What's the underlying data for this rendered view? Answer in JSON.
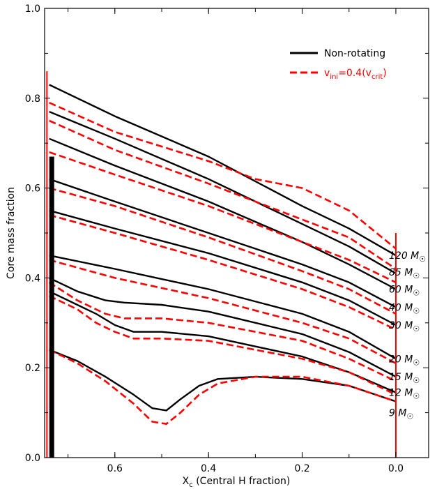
{
  "chart_data": {
    "type": "line",
    "xlabel": "X",
    "xlabel_sub": "c",
    "xlabel_rest": " (Central H fraction)",
    "ylabel": "Core mass fraction",
    "xlim": [
      0.75,
      -0.07
    ],
    "ylim": [
      0,
      1.0
    ],
    "x_ticks": [
      0.6,
      0.4,
      0.2,
      0.0
    ],
    "x_tick_labels": [
      "0.6",
      "0.4",
      "0.2",
      "0.0"
    ],
    "y_ticks": [
      0.0,
      0.2,
      0.4,
      0.6,
      0.8,
      1.0
    ],
    "y_tick_labels": [
      "0.0",
      "0.2",
      "0.4",
      "0.6",
      "0.8",
      "1.0"
    ],
    "legend": {
      "position": "top-right",
      "entries": [
        {
          "label": "Non-rotating",
          "color": "#000000",
          "style": "solid"
        },
        {
          "label_main": "v",
          "label_sub1": "ini",
          "label_mid": "=0.4(v",
          "label_sub2": "crit",
          "label_end": ")",
          "color": "#ff0000",
          "style": "dashed"
        }
      ]
    },
    "mass_labels": [
      {
        "text": "120 M",
        "sym": "☉",
        "y": 0.45
      },
      {
        "text": "85 M",
        "sym": "☉",
        "y": 0.413
      },
      {
        "text": "60 M",
        "sym": "☉",
        "y": 0.375
      },
      {
        "text": "40 M",
        "sym": "☉",
        "y": 0.335
      },
      {
        "text": "30 M",
        "sym": "☉",
        "y": 0.295
      },
      {
        "text": "20 M",
        "sym": "☉",
        "y": 0.22
      },
      {
        "text": "15 M",
        "sym": "☉",
        "y": 0.18
      },
      {
        "text": "12 M",
        "sym": "☉",
        "y": 0.145
      },
      {
        "text": "9 M",
        "sym": "☉",
        "y": 0.1
      }
    ],
    "series": [
      {
        "group": "non-rotating",
        "color": "#000000",
        "dash": false,
        "points": [
          [
            0.74,
            0.83
          ],
          [
            0.6,
            0.76
          ],
          [
            0.4,
            0.67
          ],
          [
            0.2,
            0.56
          ],
          [
            0.1,
            0.51
          ],
          [
            0.0,
            0.45
          ]
        ]
      },
      {
        "group": "non-rotating",
        "color": "#000000",
        "dash": false,
        "points": [
          [
            0.74,
            0.77
          ],
          [
            0.6,
            0.71
          ],
          [
            0.4,
            0.62
          ],
          [
            0.2,
            0.52
          ],
          [
            0.1,
            0.47
          ],
          [
            0.0,
            0.41
          ]
        ]
      },
      {
        "group": "non-rotating",
        "color": "#000000",
        "dash": false,
        "points": [
          [
            0.74,
            0.71
          ],
          [
            0.6,
            0.65
          ],
          [
            0.4,
            0.57
          ],
          [
            0.2,
            0.48
          ],
          [
            0.1,
            0.43
          ],
          [
            0.0,
            0.375
          ]
        ]
      },
      {
        "group": "non-rotating",
        "color": "#000000",
        "dash": false,
        "points": [
          [
            0.74,
            0.62
          ],
          [
            0.6,
            0.57
          ],
          [
            0.4,
            0.5
          ],
          [
            0.2,
            0.43
          ],
          [
            0.1,
            0.39
          ],
          [
            0.0,
            0.335
          ]
        ]
      },
      {
        "group": "non-rotating",
        "color": "#000000",
        "dash": false,
        "points": [
          [
            0.74,
            0.55
          ],
          [
            0.6,
            0.51
          ],
          [
            0.4,
            0.455
          ],
          [
            0.2,
            0.39
          ],
          [
            0.1,
            0.35
          ],
          [
            0.0,
            0.295
          ]
        ]
      },
      {
        "group": "non-rotating",
        "color": "#000000",
        "dash": false,
        "points": [
          [
            0.74,
            0.45
          ],
          [
            0.6,
            0.42
          ],
          [
            0.4,
            0.375
          ],
          [
            0.2,
            0.32
          ],
          [
            0.1,
            0.28
          ],
          [
            0.0,
            0.22
          ]
        ]
      },
      {
        "group": "non-rotating",
        "color": "#000000",
        "dash": false,
        "points": [
          [
            0.74,
            0.4
          ],
          [
            0.68,
            0.37
          ],
          [
            0.62,
            0.35
          ],
          [
            0.58,
            0.345
          ],
          [
            0.5,
            0.34
          ],
          [
            0.4,
            0.325
          ],
          [
            0.2,
            0.275
          ],
          [
            0.1,
            0.235
          ],
          [
            0.0,
            0.18
          ]
        ]
      },
      {
        "group": "non-rotating",
        "color": "#000000",
        "dash": false,
        "points": [
          [
            0.74,
            0.37
          ],
          [
            0.68,
            0.34
          ],
          [
            0.64,
            0.32
          ],
          [
            0.6,
            0.295
          ],
          [
            0.56,
            0.28
          ],
          [
            0.5,
            0.28
          ],
          [
            0.4,
            0.27
          ],
          [
            0.2,
            0.225
          ],
          [
            0.1,
            0.19
          ],
          [
            0.0,
            0.145
          ]
        ]
      },
      {
        "group": "non-rotating",
        "color": "#000000",
        "dash": false,
        "points": [
          [
            0.74,
            0.24
          ],
          [
            0.68,
            0.215
          ],
          [
            0.62,
            0.18
          ],
          [
            0.56,
            0.14
          ],
          [
            0.52,
            0.11
          ],
          [
            0.49,
            0.105
          ],
          [
            0.46,
            0.13
          ],
          [
            0.42,
            0.16
          ],
          [
            0.38,
            0.175
          ],
          [
            0.3,
            0.18
          ],
          [
            0.2,
            0.175
          ],
          [
            0.1,
            0.16
          ],
          [
            0.0,
            0.125
          ]
        ]
      },
      {
        "group": "rotating",
        "color": "#ff0000",
        "dash": true,
        "points": [
          [
            0.74,
            0.79
          ],
          [
            0.6,
            0.725
          ],
          [
            0.4,
            0.66
          ],
          [
            0.3,
            0.62
          ],
          [
            0.2,
            0.6
          ],
          [
            0.1,
            0.55
          ],
          [
            0.0,
            0.465
          ]
        ]
      },
      {
        "group": "rotating",
        "color": "#ff0000",
        "dash": true,
        "points": [
          [
            0.74,
            0.75
          ],
          [
            0.6,
            0.685
          ],
          [
            0.4,
            0.61
          ],
          [
            0.2,
            0.53
          ],
          [
            0.1,
            0.49
          ],
          [
            0.0,
            0.42
          ]
        ]
      },
      {
        "group": "rotating",
        "color": "#ff0000",
        "dash": true,
        "points": [
          [
            0.74,
            0.68
          ],
          [
            0.6,
            0.63
          ],
          [
            0.4,
            0.56
          ],
          [
            0.2,
            0.48
          ],
          [
            0.1,
            0.44
          ],
          [
            0.0,
            0.39
          ]
        ]
      },
      {
        "group": "rotating",
        "color": "#ff0000",
        "dash": true,
        "points": [
          [
            0.74,
            0.6
          ],
          [
            0.6,
            0.56
          ],
          [
            0.4,
            0.49
          ],
          [
            0.2,
            0.415
          ],
          [
            0.1,
            0.375
          ],
          [
            0.0,
            0.32
          ]
        ]
      },
      {
        "group": "rotating",
        "color": "#ff0000",
        "dash": true,
        "points": [
          [
            0.74,
            0.54
          ],
          [
            0.6,
            0.5
          ],
          [
            0.4,
            0.44
          ],
          [
            0.2,
            0.375
          ],
          [
            0.1,
            0.335
          ],
          [
            0.0,
            0.285
          ]
        ]
      },
      {
        "group": "rotating",
        "color": "#ff0000",
        "dash": true,
        "points": [
          [
            0.74,
            0.44
          ],
          [
            0.6,
            0.4
          ],
          [
            0.4,
            0.355
          ],
          [
            0.2,
            0.3
          ],
          [
            0.1,
            0.265
          ],
          [
            0.0,
            0.21
          ]
        ]
      },
      {
        "group": "rotating",
        "color": "#ff0000",
        "dash": true,
        "points": [
          [
            0.74,
            0.39
          ],
          [
            0.68,
            0.35
          ],
          [
            0.62,
            0.32
          ],
          [
            0.58,
            0.31
          ],
          [
            0.5,
            0.31
          ],
          [
            0.4,
            0.3
          ],
          [
            0.2,
            0.26
          ],
          [
            0.1,
            0.22
          ],
          [
            0.0,
            0.17
          ]
        ]
      },
      {
        "group": "rotating",
        "color": "#ff0000",
        "dash": true,
        "points": [
          [
            0.74,
            0.36
          ],
          [
            0.68,
            0.33
          ],
          [
            0.64,
            0.3
          ],
          [
            0.6,
            0.28
          ],
          [
            0.56,
            0.265
          ],
          [
            0.5,
            0.265
          ],
          [
            0.4,
            0.26
          ],
          [
            0.2,
            0.22
          ],
          [
            0.1,
            0.19
          ],
          [
            0.0,
            0.14
          ]
        ]
      },
      {
        "group": "rotating",
        "color": "#ff0000",
        "dash": true,
        "points": [
          [
            0.74,
            0.24
          ],
          [
            0.68,
            0.21
          ],
          [
            0.62,
            0.17
          ],
          [
            0.56,
            0.12
          ],
          [
            0.52,
            0.08
          ],
          [
            0.49,
            0.075
          ],
          [
            0.46,
            0.1
          ],
          [
            0.42,
            0.14
          ],
          [
            0.38,
            0.165
          ],
          [
            0.3,
            0.18
          ],
          [
            0.2,
            0.18
          ],
          [
            0.1,
            0.16
          ],
          [
            0.0,
            0.125
          ]
        ]
      }
    ]
  }
}
